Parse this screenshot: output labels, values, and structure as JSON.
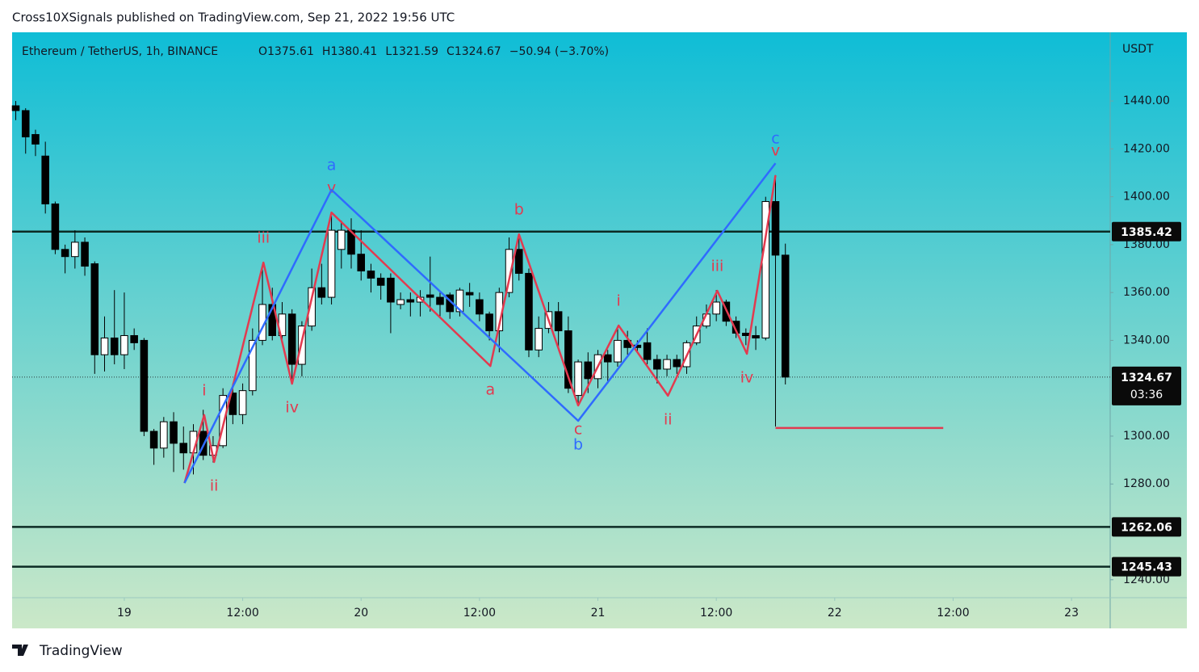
{
  "header": "Cross10XSignals published on TradingView.com, Sep 21, 2022 19:56 UTC",
  "footer": "TradingView",
  "chart_data": {
    "type": "candlestick",
    "symbol": "Ethereum / TetherUS, 1h, BINANCE",
    "legend": [
      "O1375.61",
      "H1380.41",
      "L1321.59",
      "C1324.67",
      "−50.94 (−3.70%)"
    ],
    "currency": "USDT",
    "x": [
      -11,
      -10,
      -9,
      -8,
      -7,
      -6,
      -5,
      -4,
      -3,
      -2,
      -1,
      0,
      1,
      2,
      3,
      4,
      5,
      6,
      7,
      8,
      9,
      10,
      11,
      12,
      13,
      14,
      15,
      16,
      17,
      18,
      19,
      20,
      21,
      22,
      23,
      24,
      25,
      26,
      27,
      28,
      29,
      30,
      31,
      32,
      33,
      34,
      35,
      36,
      37,
      38,
      39,
      40,
      41,
      42,
      43,
      44,
      45,
      46,
      47,
      48,
      49,
      50,
      51,
      52,
      53,
      54,
      55,
      56,
      57,
      58,
      59,
      60,
      61,
      62,
      63,
      64,
      65,
      66,
      67
    ],
    "open": [
      1438,
      1436,
      1426,
      1417,
      1397,
      1378,
      1375,
      1381,
      1372,
      1334,
      1341,
      1334,
      1342,
      1340,
      1302,
      1295,
      1306,
      1297,
      1293,
      1302,
      1292,
      1296,
      1318,
      1309,
      1319,
      1340,
      1355,
      1342,
      1351,
      1330,
      1346,
      1362,
      1358,
      1378,
      1386,
      1376,
      1369,
      1366,
      1366,
      1355,
      1357,
      1356,
      1359,
      1358,
      1359,
      1352,
      1360,
      1357,
      1351,
      1344,
      1360,
      1378,
      1368,
      1336,
      1345,
      1352,
      1344,
      1317,
      1331,
      1324,
      1334,
      1331,
      1340,
      1338,
      1339,
      1332,
      1328,
      1332,
      1329,
      1339,
      1346,
      1351,
      1356,
      1348,
      1343,
      1342,
      1341,
      1398,
      1375.61
    ],
    "high": [
      1440,
      1437,
      1428,
      1423,
      1398,
      1380,
      1386,
      1383,
      1373,
      1350,
      1361,
      1360,
      1345,
      1341,
      1303,
      1308,
      1310,
      1304,
      1305,
      1311,
      1300,
      1320,
      1322,
      1322,
      1345,
      1370,
      1362,
      1356,
      1353,
      1348,
      1370,
      1372,
      1392,
      1390,
      1391,
      1386,
      1372,
      1368,
      1368,
      1360,
      1360,
      1361,
      1375,
      1360,
      1360,
      1362,
      1364,
      1360,
      1352,
      1362,
      1383,
      1383,
      1370,
      1350,
      1356,
      1356,
      1350,
      1332,
      1335,
      1336,
      1336,
      1346,
      1344,
      1340,
      1345,
      1334,
      1334,
      1334,
      1340,
      1350,
      1355,
      1361,
      1357,
      1350,
      1345,
      1346,
      1400,
      1409,
      1380.41
    ],
    "low": [
      1432,
      1418,
      1417,
      1393,
      1376,
      1368,
      1370,
      1367,
      1326,
      1327,
      1330,
      1328,
      1336,
      1300,
      1288,
      1291,
      1285,
      1286,
      1284,
      1290,
      1289,
      1295,
      1305,
      1305,
      1317,
      1338,
      1340,
      1340,
      1322,
      1325,
      1344,
      1355,
      1355,
      1370,
      1370,
      1365,
      1360,
      1357,
      1343,
      1353,
      1350,
      1350,
      1352,
      1350,
      1349,
      1350,
      1354,
      1348,
      1340,
      1335,
      1358,
      1365,
      1333,
      1333,
      1343,
      1336,
      1318,
      1313,
      1318,
      1320,
      1322,
      1329,
      1334,
      1335,
      1330,
      1322,
      1325,
      1326,
      1326,
      1338,
      1345,
      1348,
      1346,
      1341,
      1338,
      1336,
      1340,
      1304,
      1321.59
    ],
    "close": [
      1436,
      1425,
      1422,
      1397,
      1378,
      1375,
      1381,
      1371,
      1334,
      1341,
      1334,
      1342,
      1339,
      1302,
      1295,
      1306,
      1297,
      1293,
      1302,
      1292,
      1296,
      1317,
      1309,
      1319,
      1340,
      1355,
      1342,
      1351,
      1330,
      1346,
      1362,
      1358,
      1386,
      1386,
      1376,
      1369,
      1366,
      1363,
      1356,
      1357,
      1356,
      1358,
      1358,
      1355,
      1352,
      1361,
      1359,
      1351,
      1344,
      1360,
      1378,
      1368,
      1336,
      1345,
      1352,
      1344,
      1320,
      1331,
      1324,
      1334,
      1331,
      1340,
      1337,
      1337,
      1332,
      1328,
      1332,
      1329,
      1339,
      1346,
      1351,
      1356,
      1348,
      1343,
      1342,
      1341,
      1398,
      1375.61,
      1324.67
    ],
    "xlim": [
      -11.37,
      99.92
    ],
    "xticks": [
      {
        "value": 0,
        "label": "19"
      },
      {
        "value": 12,
        "label": "12:00"
      },
      {
        "value": 24,
        "label": "20"
      },
      {
        "value": 36,
        "label": "12:00"
      },
      {
        "value": 48,
        "label": "21"
      },
      {
        "value": 60,
        "label": "12:00"
      },
      {
        "value": 72,
        "label": "22"
      },
      {
        "value": 84,
        "label": "12:00"
      },
      {
        "value": 96,
        "label": "23"
      }
    ],
    "ylim": [
      1232.5,
      1468.7
    ],
    "yticks": [
      {
        "value": 1240,
        "label": "1240.00"
      },
      {
        "value": 1280,
        "label": "1280.00"
      },
      {
        "value": 1300,
        "label": "1300.00"
      },
      {
        "value": 1340,
        "label": "1340.00"
      },
      {
        "value": 1360,
        "label": "1360.00"
      },
      {
        "value": 1380,
        "label": "1380.00"
      },
      {
        "value": 1400,
        "label": "1400.00"
      },
      {
        "value": 1420,
        "label": "1420.00"
      },
      {
        "value": 1440,
        "label": "1440.00"
      }
    ],
    "levels": [
      1385.42,
      1262.06,
      1245.43
    ],
    "last_price": 1324.67,
    "countdown": "03:36",
    "target": {
      "value": 1303.4,
      "x": [
        66,
        83
      ],
      "color": "#e23a4f"
    },
    "waves": [
      {
        "color": "#e23a4f",
        "x": [
          6.1,
          8.1,
          9.1,
          14.1,
          17.0,
          21.0,
          37.1,
          40.0,
          46.0,
          50.1,
          55.1,
          60.1,
          63.1,
          66.0
        ],
        "values": [
          1280.4,
          1308.8,
          1289.2,
          1372.5,
          1321.9,
          1393.4,
          1329.3,
          1384.3,
          1312.8,
          1346.2,
          1316.9,
          1360.7,
          1334.4,
          1409.0
        ],
        "labels": [
          null,
          "i",
          "ii",
          "iii",
          "iv",
          "v",
          "a",
          "b",
          "c",
          "i",
          "ii",
          "iii",
          "iv",
          "v"
        ]
      },
      {
        "color": "#2f6bff",
        "x": [
          6.1,
          21.0,
          46.0,
          66.0
        ],
        "values": [
          1280.4,
          1402.9,
          1306.4,
          1414.0
        ],
        "labels": [
          null,
          "a",
          "b",
          "c"
        ]
      }
    ]
  }
}
